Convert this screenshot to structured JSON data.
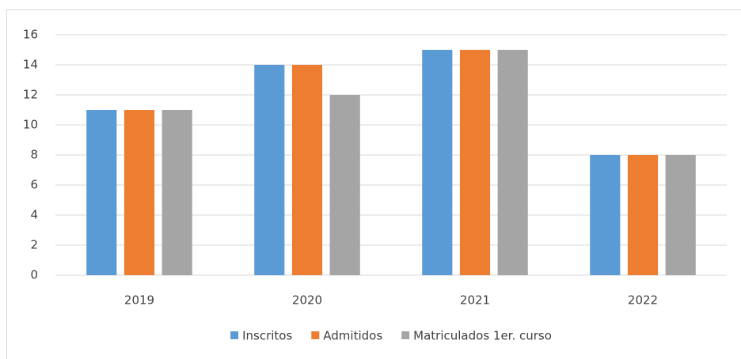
{
  "chart_data": {
    "type": "bar",
    "categories": [
      "2019",
      "2020",
      "2021",
      "2022"
    ],
    "series": [
      {
        "name": "Inscritos",
        "color": "#5b9bd5",
        "values": [
          11,
          14,
          15,
          8
        ]
      },
      {
        "name": "Admitidos",
        "color": "#ed7d31",
        "values": [
          11,
          14,
          15,
          8
        ]
      },
      {
        "name": "Matriculados 1er. curso",
        "color": "#a5a5a5",
        "values": [
          11,
          12,
          15,
          8
        ]
      }
    ],
    "ylim": [
      0,
      16
    ],
    "yticks": [
      0,
      2,
      4,
      6,
      8,
      10,
      12,
      14,
      16
    ],
    "grid": true,
    "legend": "bottom"
  }
}
